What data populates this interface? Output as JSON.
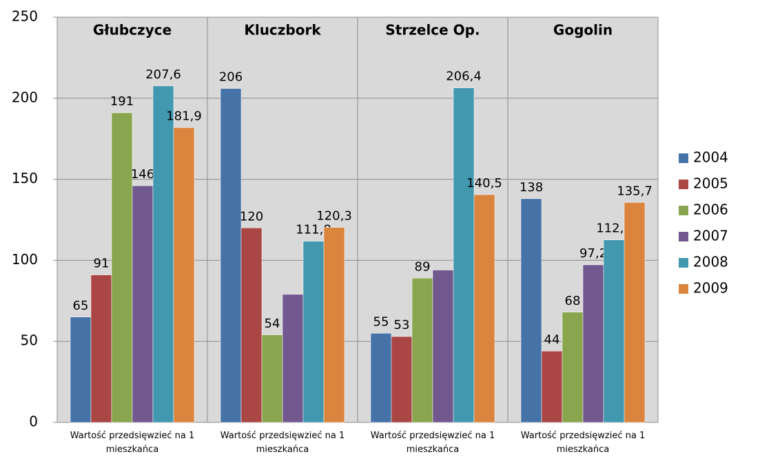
{
  "chart_data": {
    "type": "bar",
    "categories": [
      "Wartość przedsięwzieć na 1 mieszkańca",
      "Wartość przedsięwzieć na 1 mieszkańca",
      "Wartość przedsięwzieć na 1 mieszkańca",
      "Wartość przedsięwzieć na 1 mieszkańca"
    ],
    "panel_titles": [
      "Głubczyce",
      "Kluczbork",
      "Strzelce Op.",
      "Gogolin"
    ],
    "series": [
      {
        "name": "2004",
        "color": "#4572a7",
        "values": [
          65,
          206,
          55,
          138
        ],
        "value_labels": [
          "65",
          "206",
          "55",
          "138"
        ]
      },
      {
        "name": "2005",
        "color": "#aa4643",
        "values": [
          91,
          120,
          53,
          44
        ],
        "value_labels": [
          "91",
          "120",
          "53",
          "44"
        ]
      },
      {
        "name": "2006",
        "color": "#89a54e",
        "values": [
          191,
          54,
          89,
          68
        ],
        "value_labels": [
          "191",
          "54",
          "89",
          "68"
        ]
      },
      {
        "name": "2007",
        "color": "#71588f",
        "values": [
          146,
          79,
          94,
          97.2
        ],
        "value_labels": [
          "146",
          null,
          null,
          "97,2"
        ]
      },
      {
        "name": "2008",
        "color": "#4198af",
        "values": [
          207.6,
          111.8,
          206.4,
          112.6
        ],
        "value_labels": [
          "207,6",
          "111,8",
          "206,4",
          "112,6"
        ]
      },
      {
        "name": "2009",
        "color": "#db843d",
        "values": [
          181.9,
          120.3,
          140.5,
          135.7
        ],
        "value_labels": [
          "181,9",
          "120,3",
          "140,5",
          "135,7"
        ]
      }
    ],
    "ylim": [
      0,
      250
    ],
    "yticks": [
      0,
      50,
      100,
      150,
      200,
      250
    ],
    "grid": true,
    "legend": "right"
  }
}
